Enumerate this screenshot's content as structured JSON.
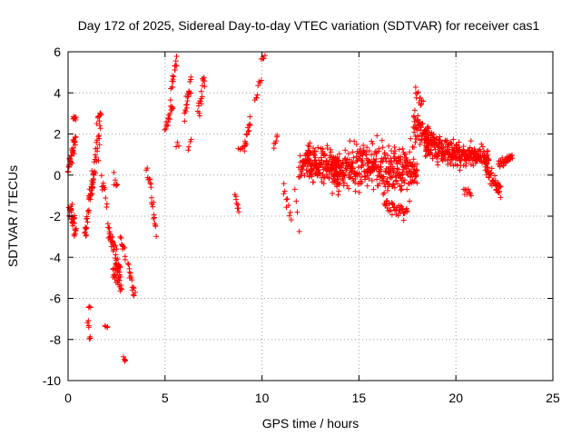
{
  "chart_data": {
    "type": "scatter",
    "title": "Day 172 of 2025, Sidereal Day-to-day VTEC variation (SDTVAR) for receiver cas1",
    "xlabel": "GPS time / hours",
    "ylabel": "SDTVAR / TECUs",
    "xlim": [
      0,
      25
    ],
    "ylim": [
      -10,
      6
    ],
    "xticks": [
      0,
      5,
      10,
      15,
      20,
      25
    ],
    "yticks": [
      -10,
      -8,
      -6,
      -4,
      -2,
      0,
      2,
      4,
      6
    ],
    "grid": true,
    "marker": "+",
    "colors": {
      "series": "#ff0000",
      "axes": "#000000",
      "grid": "#a0a0a0"
    },
    "series": [
      {
        "name": "SDTVAR",
        "segments": [
          {
            "x": [
              0.0,
              0.4
            ],
            "center": [
              0.3,
              1.8
            ],
            "spread": [
              0.4,
              0.8
            ],
            "n": 36
          },
          {
            "x": [
              0.05,
              0.4
            ],
            "center": [
              -1.5,
              -2.6
            ],
            "spread": 0.8,
            "n": 34
          },
          {
            "x": [
              0.25,
              0.4
            ],
            "center": [
              2.8,
              2.7
            ],
            "spread": 0.2,
            "n": 8
          },
          {
            "x": [
              0.85,
              1.3
            ],
            "center": [
              -2.8,
              -0.2
            ],
            "spread": 0.8,
            "n": 32
          },
          {
            "x": [
              1.0,
              1.15
            ],
            "center": [
              -7.0,
              -7.9
            ],
            "spread": 0.5,
            "n": 7
          },
          {
            "x": [
              1.05,
              1.15
            ],
            "center": [
              -6.5,
              -6.5
            ],
            "spread": 0.3,
            "n": 3
          },
          {
            "x": [
              1.2,
              1.65
            ],
            "center": [
              -0.6,
              2.2
            ],
            "spread": 0.9,
            "n": 28
          },
          {
            "x": [
              1.5,
              1.7
            ],
            "center": [
              2.6,
              3.1
            ],
            "spread": 0.3,
            "n": 8
          },
          {
            "x": [
              1.7,
              2.0
            ],
            "center": [
              -0.4,
              -1.3
            ],
            "spread": 0.6,
            "n": 10
          },
          {
            "x": [
              1.9,
              2.05
            ],
            "center": [
              -7.2,
              -7.4
            ],
            "spread": 0.2,
            "n": 4
          },
          {
            "x": [
              2.05,
              2.7
            ],
            "center": [
              -2.5,
              -4.8
            ],
            "spread": 0.7,
            "n": 44
          },
          {
            "x": [
              2.3,
              2.75
            ],
            "center": [
              -4.5,
              -5.6
            ],
            "spread": 0.6,
            "n": 24
          },
          {
            "x": [
              2.35,
              2.55
            ],
            "center": [
              0.1,
              -0.4
            ],
            "spread": 0.5,
            "n": 6
          },
          {
            "x": [
              2.7,
              2.95
            ],
            "center": [
              -3.0,
              -4.0
            ],
            "spread": 0.4,
            "n": 10
          },
          {
            "x": [
              2.85,
              2.95
            ],
            "center": [
              -8.9,
              -9.0
            ],
            "spread": 0.2,
            "n": 4
          },
          {
            "x": [
              3.1,
              3.45
            ],
            "center": [
              -4.4,
              -6.0
            ],
            "spread": 0.5,
            "n": 16
          },
          {
            "x": [
              4.05,
              4.3
            ],
            "center": [
              0.2,
              -0.6
            ],
            "spread": 0.5,
            "n": 9
          },
          {
            "x": [
              4.3,
              4.55
            ],
            "center": [
              -1.0,
              -2.9
            ],
            "spread": 0.5,
            "n": 12
          },
          {
            "x": [
              5.0,
              5.4
            ],
            "center": [
              2.3,
              3.3
            ],
            "spread": 0.4,
            "n": 18
          },
          {
            "x": [
              5.3,
              5.6
            ],
            "center": [
              4.0,
              5.6
            ],
            "spread": 0.5,
            "n": 16
          },
          {
            "x": [
              5.55,
              5.7
            ],
            "center": [
              1.5,
              1.5
            ],
            "spread": 0.2,
            "n": 3
          },
          {
            "x": [
              6.0,
              6.35
            ],
            "center": [
              3.0,
              4.6
            ],
            "spread": 0.6,
            "n": 20
          },
          {
            "x": [
              6.2,
              6.35
            ],
            "center": [
              1.2,
              1.8
            ],
            "spread": 0.4,
            "n": 4
          },
          {
            "x": [
              6.7,
              7.05
            ],
            "center": [
              2.9,
              4.9
            ],
            "spread": 0.6,
            "n": 18
          },
          {
            "x": [
              8.6,
              8.8
            ],
            "center": [
              -1.0,
              -1.8
            ],
            "spread": 0.3,
            "n": 8
          },
          {
            "x": [
              8.8,
              9.2
            ],
            "center": [
              1.2,
              1.5
            ],
            "spread": 0.2,
            "n": 6
          },
          {
            "x": [
              9.1,
              9.4
            ],
            "center": [
              1.4,
              2.6
            ],
            "spread": 0.5,
            "n": 14
          },
          {
            "x": [
              9.65,
              9.95
            ],
            "center": [
              3.7,
              4.5
            ],
            "spread": 0.4,
            "n": 8
          },
          {
            "x": [
              9.95,
              10.15
            ],
            "center": [
              5.6,
              5.9
            ],
            "spread": 0.2,
            "n": 4
          },
          {
            "x": [
              10.6,
              10.8
            ],
            "center": [
              1.4,
              1.9
            ],
            "spread": 0.3,
            "n": 6
          },
          {
            "x": [
              11.1,
              11.5
            ],
            "center": [
              -0.5,
              -2.0
            ],
            "spread": 0.6,
            "n": 10
          },
          {
            "x": [
              11.7,
              11.9
            ],
            "center": [
              -0.5,
              -2.6
            ],
            "spread": 0.5,
            "n": 4
          },
          {
            "x": [
              11.9,
              12.5
            ],
            "center": [
              0.2,
              1.2
            ],
            "spread": 1.0,
            "n": 40
          },
          {
            "x": [
              12.3,
              14.0
            ],
            "center": [
              0.6,
              0.4
            ],
            "spread": 1.3,
            "n": 160
          },
          {
            "x": [
              13.6,
              15.5
            ],
            "center": [
              0.0,
              0.6
            ],
            "spread": 1.5,
            "n": 170
          },
          {
            "x": [
              15.5,
              18.0
            ],
            "center": [
              0.5,
              0.2
            ],
            "spread": 1.6,
            "n": 230
          },
          {
            "x": [
              16.3,
              17.5
            ],
            "center": [
              -1.5,
              -1.8
            ],
            "spread": 0.5,
            "n": 40
          },
          {
            "x": [
              17.8,
              18.6
            ],
            "center": [
              2.5,
              1.8
            ],
            "spread": 1.0,
            "n": 60
          },
          {
            "x": [
              17.9,
              18.3
            ],
            "center": [
              4.0,
              3.5
            ],
            "spread": 0.6,
            "n": 12
          },
          {
            "x": [
              18.4,
              20.2
            ],
            "center": [
              1.5,
              1.0
            ],
            "spread": 0.9,
            "n": 180
          },
          {
            "x": [
              20.2,
              21.7
            ],
            "center": [
              1.0,
              0.8
            ],
            "spread": 0.8,
            "n": 110
          },
          {
            "x": [
              20.4,
              20.8
            ],
            "center": [
              -0.8,
              -0.8
            ],
            "spread": 0.5,
            "n": 10
          },
          {
            "x": [
              21.5,
              22.3
            ],
            "center": [
              0.5,
              -0.9
            ],
            "spread": 0.6,
            "n": 50
          },
          {
            "x": [
              22.2,
              22.9
            ],
            "center": [
              0.5,
              0.9
            ],
            "spread": 0.3,
            "n": 30
          }
        ]
      }
    ]
  }
}
